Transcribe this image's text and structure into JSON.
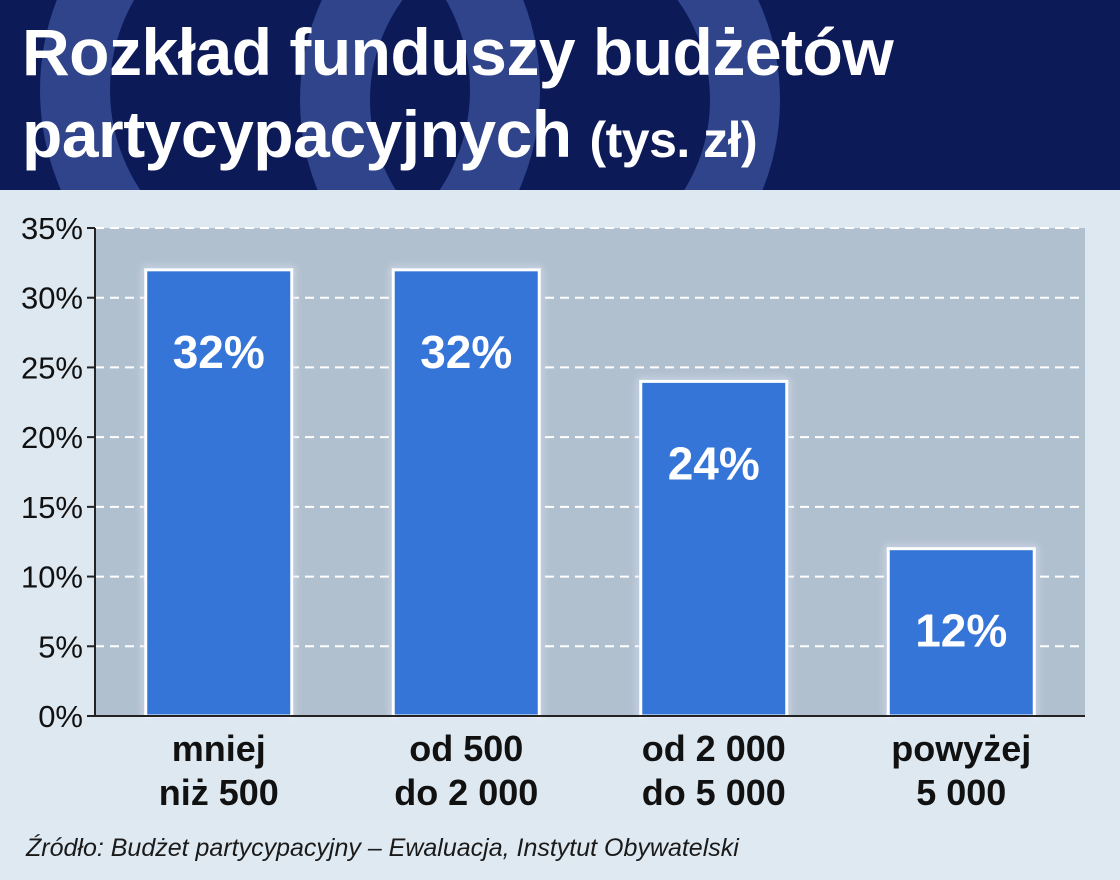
{
  "header": {
    "title_line1": "Rozkład funduszy budżetów",
    "title_line2": "partycypacyjnych",
    "title_unit": "(tys. zł)"
  },
  "chart_data": {
    "type": "bar",
    "title": "Rozkład funduszy budżetów partycypacyjnych (tys. zł)",
    "categories": [
      [
        "mniej",
        "niż 500"
      ],
      [
        "od 500",
        "do 2 000"
      ],
      [
        "od 2 000",
        "do 5 000"
      ],
      [
        "powyżej",
        "5 000"
      ]
    ],
    "values": [
      32,
      32,
      24,
      12
    ],
    "value_labels": [
      "32%",
      "32%",
      "24%",
      "12%"
    ],
    "ylim": [
      0,
      35
    ],
    "yticks": [
      0,
      5,
      10,
      15,
      20,
      25,
      30,
      35
    ],
    "ytick_labels": [
      "0%",
      "5%",
      "10%",
      "15%",
      "20%",
      "25%",
      "30%",
      "35%"
    ],
    "xlabel": "",
    "ylabel": "",
    "grid": true,
    "colors": {
      "bar": "#3474d8",
      "bar_label": "#ffffff",
      "plot_bg": "#b1c0cf",
      "grid": "#ffffff",
      "axis": "#222222"
    }
  },
  "footer": {
    "source": "Źródło: Budżet partycypacyjny – Ewaluacja, Instytut Obywatelski"
  }
}
